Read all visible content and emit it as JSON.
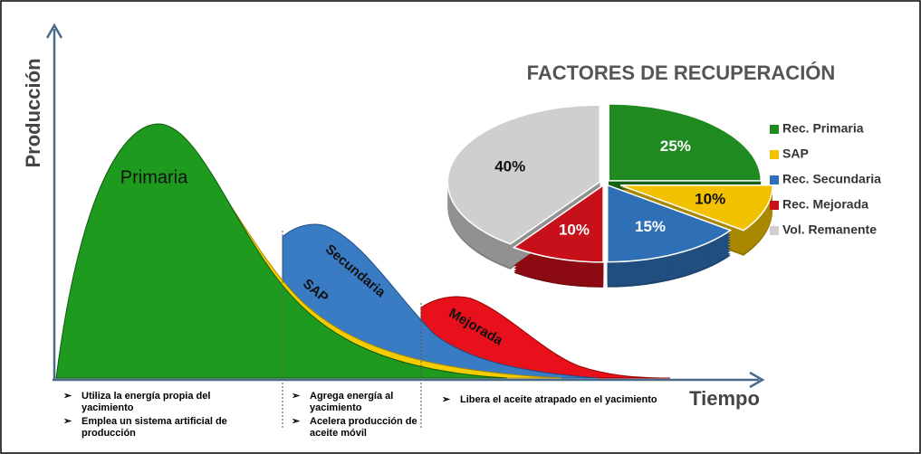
{
  "diagram": {
    "y_axis_label": "Producción",
    "x_axis_label": "Tiempo",
    "regions": [
      "Primaria",
      "SAP",
      "Secundaria",
      "Mejorada"
    ],
    "notes": [
      [
        "Utiliza la energía propia del yacimiento",
        "Emplea un sistema artificial de producción"
      ],
      [
        "Agrega energía al yacimiento",
        "Acelera producción de aceite móvil"
      ],
      [
        "Libera el aceite atrapado en el yacimiento"
      ]
    ]
  },
  "chart_data": {
    "type": "pie",
    "title": "FACTORES DE RECUPERACIÓN",
    "categories": [
      "Rec. Primaria",
      "SAP",
      "Rec. Secundaria",
      "Rec. Mejorada",
      "Vol. Remanente"
    ],
    "values": [
      25,
      10,
      15,
      10,
      40
    ],
    "value_labels": [
      "25%",
      "10%",
      "15%",
      "10%",
      "40%"
    ],
    "colors": [
      "#1f8a1f",
      "#f2c200",
      "#2e6fb5",
      "#c8101a",
      "#cfcfcf"
    ],
    "legend": "right"
  }
}
